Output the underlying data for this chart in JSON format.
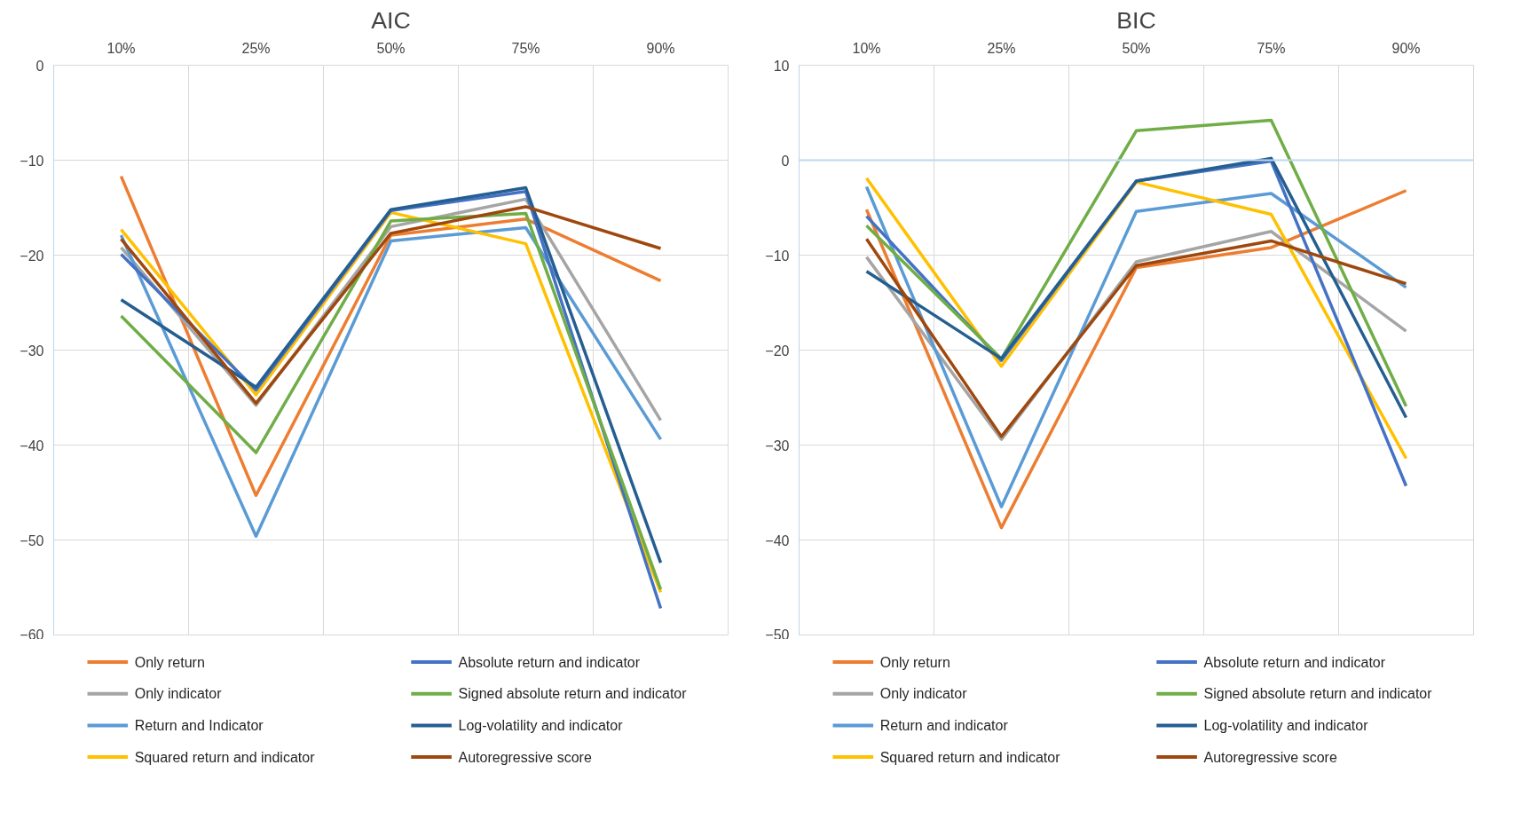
{
  "chart_data": [
    {
      "type": "line",
      "title": "AIC",
      "categories": [
        "10%",
        "25%",
        "50%",
        "75%",
        "90%"
      ],
      "ylim": [
        -60,
        0
      ],
      "yticks": [
        -60,
        -50,
        -40,
        -30,
        -20,
        -10,
        0
      ],
      "grid": true,
      "legend": "bottom",
      "series": [
        {
          "name": "Only return",
          "color": "#ed7d31",
          "values": [
            -11.7,
            -45.3,
            -17.9,
            -16.2,
            -22.7
          ]
        },
        {
          "name": "Only indicator",
          "color": "#a5a5a5",
          "values": [
            -19.2,
            -35.8,
            -17.0,
            -14.1,
            -37.4
          ]
        },
        {
          "name": "Return and Indicator",
          "color": "#5b9bd5",
          "values": [
            -17.9,
            -49.6,
            -18.5,
            -17.1,
            -39.4
          ]
        },
        {
          "name": "Squared return and indicator",
          "color": "#ffc000",
          "values": [
            -17.3,
            -34.7,
            -15.5,
            -18.8,
            -55.5
          ]
        },
        {
          "name": "Absolute return and indicator",
          "color": "#4472c4",
          "values": [
            -19.9,
            -34.2,
            -15.3,
            -13.3,
            -57.2
          ]
        },
        {
          "name": "Signed absolute return and indicator",
          "color": "#70ad47",
          "values": [
            -26.4,
            -40.8,
            -16.4,
            -15.6,
            -55.2
          ]
        },
        {
          "name": "Log-volatility and indicator",
          "color": "#255e91",
          "values": [
            -24.7,
            -33.9,
            -15.2,
            -12.9,
            -52.4
          ]
        },
        {
          "name": "Autoregressive score",
          "color": "#9e480e",
          "values": [
            -18.3,
            -35.6,
            -17.7,
            -14.9,
            -19.3
          ]
        }
      ]
    },
    {
      "type": "line",
      "title": "BIC",
      "categories": [
        "10%",
        "25%",
        "50%",
        "75%",
        "90%"
      ],
      "ylim": [
        -50,
        10
      ],
      "yticks": [
        -50,
        -40,
        -30,
        -20,
        -10,
        0,
        10
      ],
      "grid": true,
      "legend": "bottom",
      "ref_lines": [
        {
          "axis": "y",
          "value": 0,
          "color": "#bdd7ee"
        }
      ],
      "series": [
        {
          "name": "Only return",
          "color": "#ed7d31",
          "values": [
            -5.2,
            -38.7,
            -11.3,
            -9.2,
            -3.2
          ]
        },
        {
          "name": "Only indicator",
          "color": "#a5a5a5",
          "values": [
            -10.2,
            -29.4,
            -10.7,
            -7.5,
            -18.0
          ]
        },
        {
          "name": "Return and indicator",
          "color": "#5b9bd5",
          "values": [
            -2.8,
            -36.5,
            -5.4,
            -3.5,
            -13.4
          ]
        },
        {
          "name": "Squared return and indicator",
          "color": "#ffc000",
          "values": [
            -1.9,
            -21.7,
            -2.3,
            -5.7,
            -31.4
          ]
        },
        {
          "name": "Absolute return and indicator",
          "color": "#4472c4",
          "values": [
            -5.9,
            -21.1,
            -2.2,
            -0.1,
            -34.3
          ]
        },
        {
          "name": "Signed absolute return and indicator",
          "color": "#70ad47",
          "values": [
            -6.9,
            -20.9,
            3.1,
            4.2,
            -25.9
          ]
        },
        {
          "name": "Log-volatility and indicator",
          "color": "#255e91",
          "values": [
            -11.7,
            -20.9,
            -2.2,
            0.2,
            -27.1
          ]
        },
        {
          "name": "Autoregressive score",
          "color": "#9e480e",
          "values": [
            -8.3,
            -29.1,
            -11.1,
            -8.5,
            -13.0
          ]
        }
      ]
    }
  ]
}
